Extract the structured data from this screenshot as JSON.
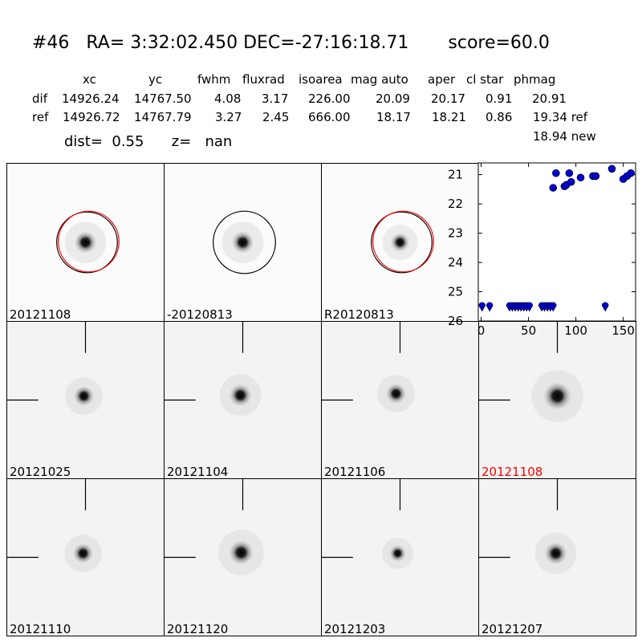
{
  "header": {
    "title": "#46   RA= 3:32:02.450 DEC=-27:16:18.71       score=60.0",
    "table_header": {
      "xc": "xc",
      "yc": "yc",
      "fwhm": "fwhm",
      "fluxrad": "fluxrad",
      "isoarea": "isoarea",
      "mag_auto": "mag auto",
      "aper": "aper",
      "cl_star": "cl star",
      "phmag": "phmag"
    },
    "dif_row": {
      "label": "dif",
      "xc": "14926.24",
      "yc": "14767.50",
      "fwhm": "4.08",
      "fluxrad": "3.17",
      "isoarea": "226.00",
      "mag_auto": "20.09",
      "aper": "20.17",
      "cl_star": "0.91",
      "phmag": "20.91"
    },
    "ref_row": {
      "label": "ref",
      "xc": "14926.72",
      "yc": "14767.79",
      "fwhm": "3.27",
      "fluxrad": "2.45",
      "isoarea": "666.00",
      "mag_auto": "18.17",
      "aper": "18.21",
      "cl_star": "0.86",
      "phmag": "19.34 ref"
    },
    "new_mag": "18.94 new",
    "dist_line": "dist=  0.55      z=   nan"
  },
  "stamps": [
    {
      "label": "20121108",
      "label_color": "#000000",
      "overlay": "circles-red-black"
    },
    {
      "label": "-20120813",
      "label_color": "#000000",
      "overlay": "circle-black"
    },
    {
      "label": "R20120813",
      "label_color": "#000000",
      "overlay": "circles-red-black"
    },
    {
      "label": "20121025",
      "label_color": "#000000",
      "overlay": "crosshair"
    },
    {
      "label": "20121104",
      "label_color": "#000000",
      "overlay": "crosshair"
    },
    {
      "label": "20121106",
      "label_color": "#000000",
      "overlay": "crosshair"
    },
    {
      "label": "20121108",
      "label_color": "#ff0000",
      "overlay": "crosshair"
    },
    {
      "label": "20121110",
      "label_color": "#000000",
      "overlay": "crosshair"
    },
    {
      "label": "20121120",
      "label_color": "#000000",
      "overlay": "crosshair"
    },
    {
      "label": "20121203",
      "label_color": "#000000",
      "overlay": "crosshair"
    },
    {
      "label": "20121207",
      "label_color": "#000000",
      "overlay": "crosshair"
    }
  ],
  "chart_data": {
    "type": "scatter",
    "title": "",
    "xlabel": "",
    "ylabel": "",
    "xlim": [
      -3,
      163
    ],
    "ylim": [
      26,
      20.6
    ],
    "y_inverted": true,
    "xticks": [
      0,
      50,
      100,
      150
    ],
    "yticks": [
      21,
      22,
      23,
      24,
      25,
      26
    ],
    "marker_color": "#0000cc",
    "series": [
      {
        "marker": "circle",
        "points": [
          [
            76,
            21.45
          ],
          [
            79,
            20.95
          ],
          [
            88,
            21.4
          ],
          [
            90,
            21.35
          ],
          [
            93,
            20.95
          ],
          [
            95,
            21.25
          ],
          [
            105,
            21.1
          ],
          [
            118,
            21.05
          ],
          [
            121,
            21.05
          ],
          [
            138,
            20.8
          ],
          [
            150,
            21.15
          ],
          [
            154,
            21.05
          ],
          [
            158,
            20.95
          ]
        ]
      },
      {
        "marker": "upper-limit",
        "points": [
          [
            1,
            25.5
          ],
          [
            9,
            25.5
          ],
          [
            30,
            25.5
          ],
          [
            33,
            25.5
          ],
          [
            36,
            25.5
          ],
          [
            39,
            25.5
          ],
          [
            42,
            25.5
          ],
          [
            45,
            25.5
          ],
          [
            48,
            25.5
          ],
          [
            51,
            25.5
          ],
          [
            64,
            25.5
          ],
          [
            67,
            25.5
          ],
          [
            70,
            25.5
          ],
          [
            73,
            25.5
          ],
          [
            76,
            25.5
          ],
          [
            131,
            25.5
          ]
        ]
      }
    ]
  }
}
